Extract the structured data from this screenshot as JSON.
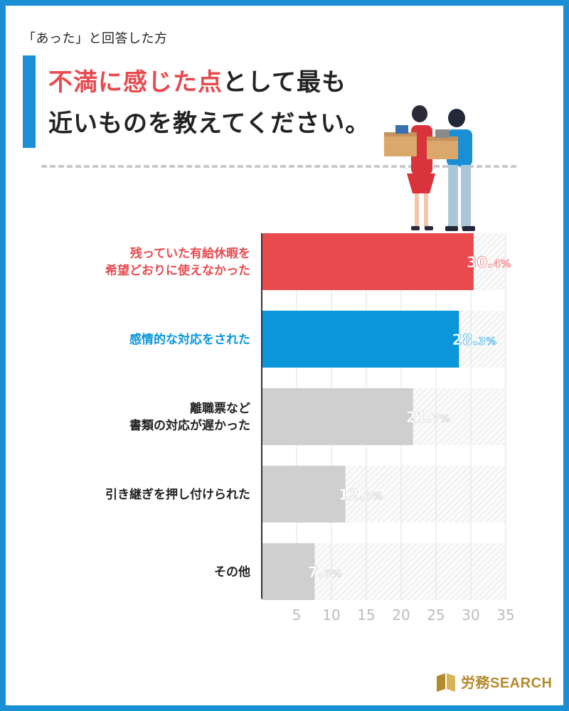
{
  "header": {
    "subtitle": "「あった」と回答した方",
    "title_highlight": "不満に感じた点",
    "title_rest": "として最も",
    "title_line2": "近いものを教えてください。"
  },
  "colors": {
    "red": "#e84a4e",
    "blue": "#0b96d9",
    "gray": "#cfcfcf",
    "brand_blue": "#1b8fd6",
    "gold": "#b48a2e"
  },
  "chart_data": {
    "type": "bar",
    "orientation": "horizontal",
    "categories": [
      [
        "残っていた有給休暇を",
        "希望どおりに使えなかった"
      ],
      [
        "感情的な対応をされた"
      ],
      [
        "離職票など",
        "書類の対応が遅かった"
      ],
      [
        "引き継ぎを押し付けられた"
      ],
      [
        "その他"
      ]
    ],
    "values": [
      30.4,
      28.3,
      21.7,
      12.0,
      7.6
    ],
    "value_labels": [
      {
        "num": "30.",
        "dec": "4%"
      },
      {
        "num": "28.",
        "dec": "3%"
      },
      {
        "num": "21.",
        "dec": "7%"
      },
      {
        "num": "12.",
        "dec": "0%"
      },
      {
        "num": "7.",
        "dec": "6%"
      }
    ],
    "bar_colors": [
      "#e84a4e",
      "#0b96d9",
      "#cfcfcf",
      "#cfcfcf",
      "#cfcfcf"
    ],
    "label_colors": [
      "#e84a4e",
      "#0b96d9",
      "#222222",
      "#222222",
      "#222222"
    ],
    "xticks": [
      "5",
      "10",
      "15",
      "20",
      "25",
      "30",
      "35"
    ],
    "xlim": [
      0,
      35
    ]
  },
  "logo": {
    "text": "労務SEARCH"
  }
}
